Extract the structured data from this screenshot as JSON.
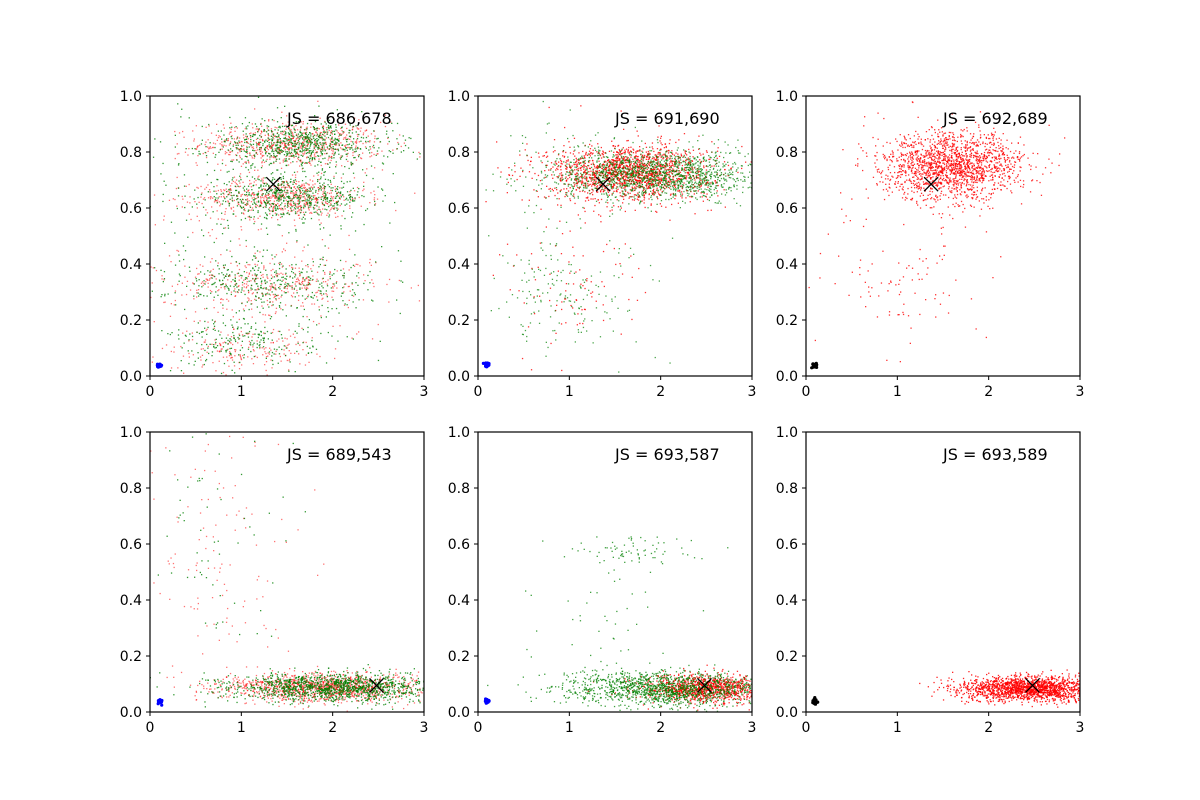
{
  "chart_data": [
    {
      "type": "scatter",
      "annotation": "JS = 686,678",
      "xlim": [
        0,
        3
      ],
      "ylim": [
        0,
        1
      ],
      "xticks": [
        "0",
        "1",
        "2",
        "3"
      ],
      "yticks": [
        "0.0",
        "0.2",
        "0.4",
        "0.6",
        "0.8",
        "1.0"
      ],
      "series": [
        {
          "color": "#ff0000",
          "alpha": 0.55,
          "clusters": [
            {
              "cx": 1.55,
              "cy": 0.83,
              "sx": 0.5,
              "sy": 0.04,
              "n": 700
            },
            {
              "cx": 1.45,
              "cy": 0.64,
              "sx": 0.45,
              "sy": 0.035,
              "n": 550
            },
            {
              "cx": 1.35,
              "cy": 0.33,
              "sx": 0.55,
              "sy": 0.05,
              "n": 350
            },
            {
              "cx": 1.0,
              "cy": 0.1,
              "sx": 0.4,
              "sy": 0.04,
              "n": 180
            },
            {
              "cx": 1.2,
              "cy": 0.5,
              "sx": 0.75,
              "sy": 0.3,
              "n": 250
            }
          ]
        },
        {
          "color": "#008000",
          "alpha": 0.8,
          "clusters": [
            {
              "cx": 1.65,
              "cy": 0.83,
              "sx": 0.5,
              "sy": 0.04,
              "n": 700
            },
            {
              "cx": 1.5,
              "cy": 0.64,
              "sx": 0.45,
              "sy": 0.035,
              "n": 550
            },
            {
              "cx": 1.3,
              "cy": 0.33,
              "sx": 0.55,
              "sy": 0.05,
              "n": 350
            },
            {
              "cx": 1.0,
              "cy": 0.12,
              "sx": 0.4,
              "sy": 0.04,
              "n": 180
            },
            {
              "cx": 1.2,
              "cy": 0.5,
              "sx": 0.75,
              "sy": 0.3,
              "n": 250
            }
          ]
        }
      ],
      "x_marker": {
        "x": 1.35,
        "y": 0.685
      },
      "small_cluster": {
        "x": 0.1,
        "y": 0.038,
        "color": "#0000ff"
      }
    },
    {
      "type": "scatter",
      "annotation": "JS = 691,690",
      "xlim": [
        0,
        3
      ],
      "ylim": [
        0,
        1
      ],
      "xticks": [
        "0",
        "1",
        "2",
        "3"
      ],
      "yticks": [
        "0.0",
        "0.2",
        "0.4",
        "0.6",
        "0.8",
        "1.0"
      ],
      "series": [
        {
          "color": "#ff0000",
          "alpha": 0.8,
          "clusters": [
            {
              "cx": 1.65,
              "cy": 0.73,
              "sx": 0.45,
              "sy": 0.05,
              "n": 1600
            },
            {
              "cx": 1.1,
              "cy": 0.3,
              "sx": 0.4,
              "sy": 0.08,
              "n": 60
            },
            {
              "cx": 0.9,
              "cy": 0.5,
              "sx": 0.5,
              "sy": 0.25,
              "n": 60
            }
          ]
        },
        {
          "color": "#008000",
          "alpha": 0.7,
          "clusters": [
            {
              "cx": 1.95,
              "cy": 0.72,
              "sx": 0.55,
              "sy": 0.045,
              "n": 1500
            },
            {
              "cx": 1.0,
              "cy": 0.3,
              "sx": 0.45,
              "sy": 0.1,
              "n": 130
            },
            {
              "cx": 0.8,
              "cy": 0.55,
              "sx": 0.5,
              "sy": 0.25,
              "n": 80
            }
          ]
        }
      ],
      "x_marker": {
        "x": 1.37,
        "y": 0.685
      },
      "small_cluster": {
        "x": 0.1,
        "y": 0.038,
        "color": "#0000ff"
      }
    },
    {
      "type": "scatter",
      "annotation": "JS = 692,689",
      "xlim": [
        0,
        3
      ],
      "ylim": [
        0,
        1
      ],
      "xticks": [
        "0",
        "1",
        "2",
        "3"
      ],
      "yticks": [
        "0.0",
        "0.2",
        "0.4",
        "0.6",
        "0.8",
        "1.0"
      ],
      "series": [
        {
          "color": "#ff0000",
          "alpha": 0.8,
          "clusters": [
            {
              "cx": 1.6,
              "cy": 0.75,
              "sx": 0.38,
              "sy": 0.06,
              "n": 1700
            },
            {
              "cx": 1.2,
              "cy": 0.32,
              "sx": 0.4,
              "sy": 0.08,
              "n": 60
            },
            {
              "cx": 0.9,
              "cy": 0.5,
              "sx": 0.5,
              "sy": 0.25,
              "n": 50
            }
          ]
        }
      ],
      "x_marker": {
        "x": 1.37,
        "y": 0.685
      },
      "small_cluster": {
        "x": 0.1,
        "y": 0.038,
        "color": "#000000"
      }
    },
    {
      "type": "scatter",
      "annotation": "JS = 689,543",
      "xlim": [
        0,
        3
      ],
      "ylim": [
        0,
        1
      ],
      "xticks": [
        "0",
        "1",
        "2",
        "3"
      ],
      "yticks": [
        "0.0",
        "0.2",
        "0.4",
        "0.6",
        "0.8",
        "1.0"
      ],
      "series": [
        {
          "color": "#ff0000",
          "alpha": 0.55,
          "clusters": [
            {
              "cx": 1.9,
              "cy": 0.09,
              "sx": 0.55,
              "sy": 0.025,
              "n": 1300
            },
            {
              "cx": 0.8,
              "cy": 0.55,
              "sx": 0.5,
              "sy": 0.25,
              "n": 120
            }
          ]
        },
        {
          "color": "#008000",
          "alpha": 0.8,
          "clusters": [
            {
              "cx": 2.0,
              "cy": 0.09,
              "sx": 0.55,
              "sy": 0.025,
              "n": 1300
            },
            {
              "cx": 0.7,
              "cy": 0.55,
              "sx": 0.4,
              "sy": 0.25,
              "n": 60
            }
          ]
        }
      ],
      "x_marker": {
        "x": 2.48,
        "y": 0.095
      },
      "small_cluster": {
        "x": 0.1,
        "y": 0.038,
        "color": "#0000ff"
      }
    },
    {
      "type": "scatter",
      "annotation": "JS = 693,587",
      "xlim": [
        0,
        3
      ],
      "ylim": [
        0,
        1
      ],
      "xticks": [
        "0",
        "1",
        "2",
        "3"
      ],
      "yticks": [
        "0.0",
        "0.2",
        "0.4",
        "0.6",
        "0.8",
        "1.0"
      ],
      "series": [
        {
          "color": "#ff0000",
          "alpha": 0.8,
          "clusters": [
            {
              "cx": 2.5,
              "cy": 0.085,
              "sx": 0.35,
              "sy": 0.025,
              "n": 1100
            }
          ]
        },
        {
          "color": "#008000",
          "alpha": 0.75,
          "clusters": [
            {
              "cx": 2.05,
              "cy": 0.085,
              "sx": 0.55,
              "sy": 0.03,
              "n": 1400
            },
            {
              "cx": 1.7,
              "cy": 0.58,
              "sx": 0.4,
              "sy": 0.03,
              "n": 70
            },
            {
              "cx": 1.4,
              "cy": 0.38,
              "sx": 0.4,
              "sy": 0.1,
              "n": 40
            }
          ]
        }
      ],
      "x_marker": {
        "x": 2.48,
        "y": 0.095
      },
      "small_cluster": {
        "x": 0.1,
        "y": 0.038,
        "color": "#0000ff"
      }
    },
    {
      "type": "scatter",
      "annotation": "JS = 693,589",
      "xlim": [
        0,
        3
      ],
      "ylim": [
        0,
        1
      ],
      "xticks": [
        "0",
        "1",
        "2",
        "3"
      ],
      "yticks": [
        "0.0",
        "0.2",
        "0.4",
        "0.6",
        "0.8",
        "1.0"
      ],
      "series": [
        {
          "color": "#ff0000",
          "alpha": 0.85,
          "clusters": [
            {
              "cx": 2.45,
              "cy": 0.085,
              "sx": 0.4,
              "sy": 0.022,
              "n": 1800
            }
          ]
        }
      ],
      "x_marker": {
        "x": 2.48,
        "y": 0.095
      },
      "small_cluster": {
        "x": 0.1,
        "y": 0.038,
        "color": "#000000"
      }
    }
  ]
}
